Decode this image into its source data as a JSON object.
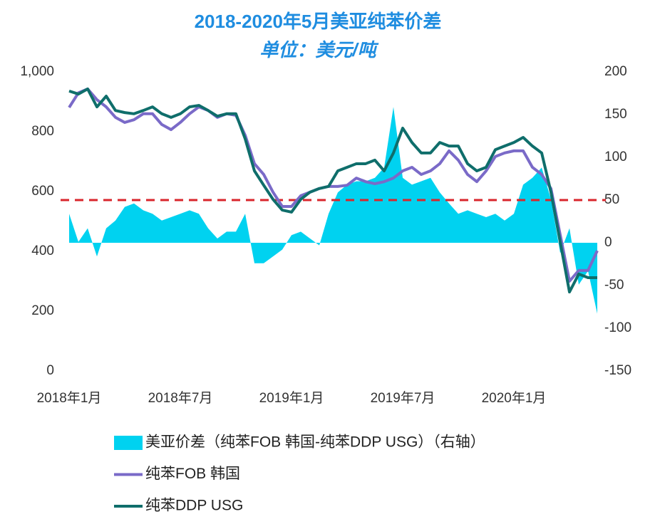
{
  "chart_data": {
    "type": "line",
    "title": "2018-2020年5月美亚纯苯价差",
    "subtitle": "单位：美元/吨",
    "categories": [
      "2018年1月",
      null,
      null,
      null,
      null,
      null,
      null,
      null,
      null,
      null,
      null,
      null,
      "2018年7月",
      null,
      null,
      null,
      null,
      null,
      null,
      null,
      null,
      null,
      null,
      null,
      "2019年1月",
      null,
      null,
      null,
      null,
      null,
      null,
      null,
      null,
      null,
      null,
      null,
      "2019年7月",
      null,
      null,
      null,
      null,
      null,
      null,
      null,
      null,
      null,
      null,
      null,
      "2020年1月",
      null,
      null,
      null,
      null,
      null,
      null,
      null,
      null,
      null
    ],
    "series": [
      {
        "name": "美亚价差（纯苯FOB 韩国-纯苯DDP USG）（右轴）",
        "type": "area",
        "axis": "y2",
        "color": "#00d2f0",
        "values": [
          34,
          1,
          17,
          -16,
          17,
          26,
          42,
          46,
          38,
          34,
          26,
          30,
          34,
          38,
          34,
          17,
          5,
          13,
          13,
          34,
          -24,
          -24,
          -16,
          -8,
          9,
          13,
          5,
          -3,
          34,
          59,
          68,
          72,
          72,
          76,
          88,
          159,
          76,
          68,
          72,
          76,
          59,
          46,
          34,
          38,
          34,
          30,
          34,
          26,
          34,
          68,
          76,
          88,
          51,
          -12,
          17,
          -49,
          -33,
          -83
        ]
      },
      {
        "name": "纯苯FOB 韩国",
        "type": "line",
        "axis": "y",
        "color": "#7a6ac8",
        "values": [
          881,
          930,
          943,
          907,
          883,
          848,
          831,
          840,
          860,
          860,
          824,
          807,
          831,
          860,
          883,
          871,
          848,
          860,
          855,
          788,
          693,
          657,
          598,
          550,
          550,
          586,
          598,
          610,
          617,
          617,
          621,
          645,
          633,
          626,
          633,
          645,
          669,
          681,
          657,
          669,
          693,
          736,
          705,
          657,
          633,
          669,
          717,
          729,
          736,
          736,
          681,
          657,
          610,
          455,
          300,
          336,
          336,
          402
        ]
      },
      {
        "name": "纯苯DDP USG",
        "type": "line",
        "axis": "y",
        "color": "#0f6e6b",
        "values": [
          936,
          926,
          943,
          883,
          919,
          871,
          864,
          860,
          871,
          883,
          860,
          848,
          860,
          883,
          888,
          871,
          852,
          860,
          860,
          776,
          669,
          621,
          574,
          538,
          531,
          574,
          598,
          610,
          617,
          669,
          681,
          693,
          693,
          705,
          669,
          729,
          812,
          764,
          729,
          729,
          764,
          752,
          752,
          693,
          669,
          681,
          740,
          752,
          764,
          781,
          752,
          729,
          598,
          431,
          264,
          324,
          312,
          312
        ]
      }
    ],
    "reference_line": {
      "axis": "y2",
      "value": 50,
      "color": "#d9262c"
    },
    "ylim": [
      0,
      1000
    ],
    "yticks": [
      0,
      200,
      400,
      600,
      800,
      {
        "value": 1000,
        "label": "1,000"
      }
    ],
    "y2lim": [
      -150,
      200
    ],
    "y2ticks": [
      -150,
      -100,
      -50,
      0,
      50,
      100,
      150,
      200
    ],
    "legend": "bottom"
  }
}
